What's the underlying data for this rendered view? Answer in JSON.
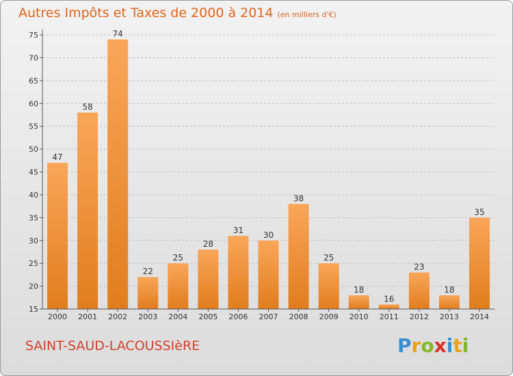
{
  "title": "Autres Impôts et Taxes de 2000 à 2014",
  "subtitle": "(en milliers d'€)",
  "commune": "SAINT-SAUD-LACOUSSIèRE",
  "logo": {
    "text": "Proxiti",
    "letters": [
      {
        "ch": "P",
        "color": "#3a8fd0"
      },
      {
        "ch": "r",
        "color": "#e8a21a"
      },
      {
        "ch": "o",
        "color": "#7fb82a"
      },
      {
        "ch": "x",
        "color": "#d8322a"
      },
      {
        "ch": "i",
        "color": "#3a8fd0"
      },
      {
        "ch": "t",
        "color": "#e8a21a"
      },
      {
        "ch": "i",
        "color": "#7fb82a"
      }
    ]
  },
  "colors": {
    "title": "#e0641c",
    "bar_light": "#f9a65a",
    "bar_dark": "#e07d1e",
    "grid": "#bdbdbd"
  },
  "chart_data": {
    "type": "bar",
    "categories": [
      "2000",
      "2001",
      "2002",
      "2003",
      "2004",
      "2005",
      "2006",
      "2007",
      "2008",
      "2009",
      "2010",
      "2011",
      "2012",
      "2013",
      "2014"
    ],
    "values": [
      47,
      58,
      74,
      22,
      25,
      28,
      31,
      30,
      38,
      25,
      18,
      16,
      23,
      18,
      35
    ],
    "ylim": [
      15,
      75
    ],
    "yticks": [
      15,
      20,
      25,
      30,
      35,
      40,
      45,
      50,
      55,
      60,
      65,
      70,
      75
    ],
    "grid": "horizontal dashed",
    "legend": "none"
  }
}
